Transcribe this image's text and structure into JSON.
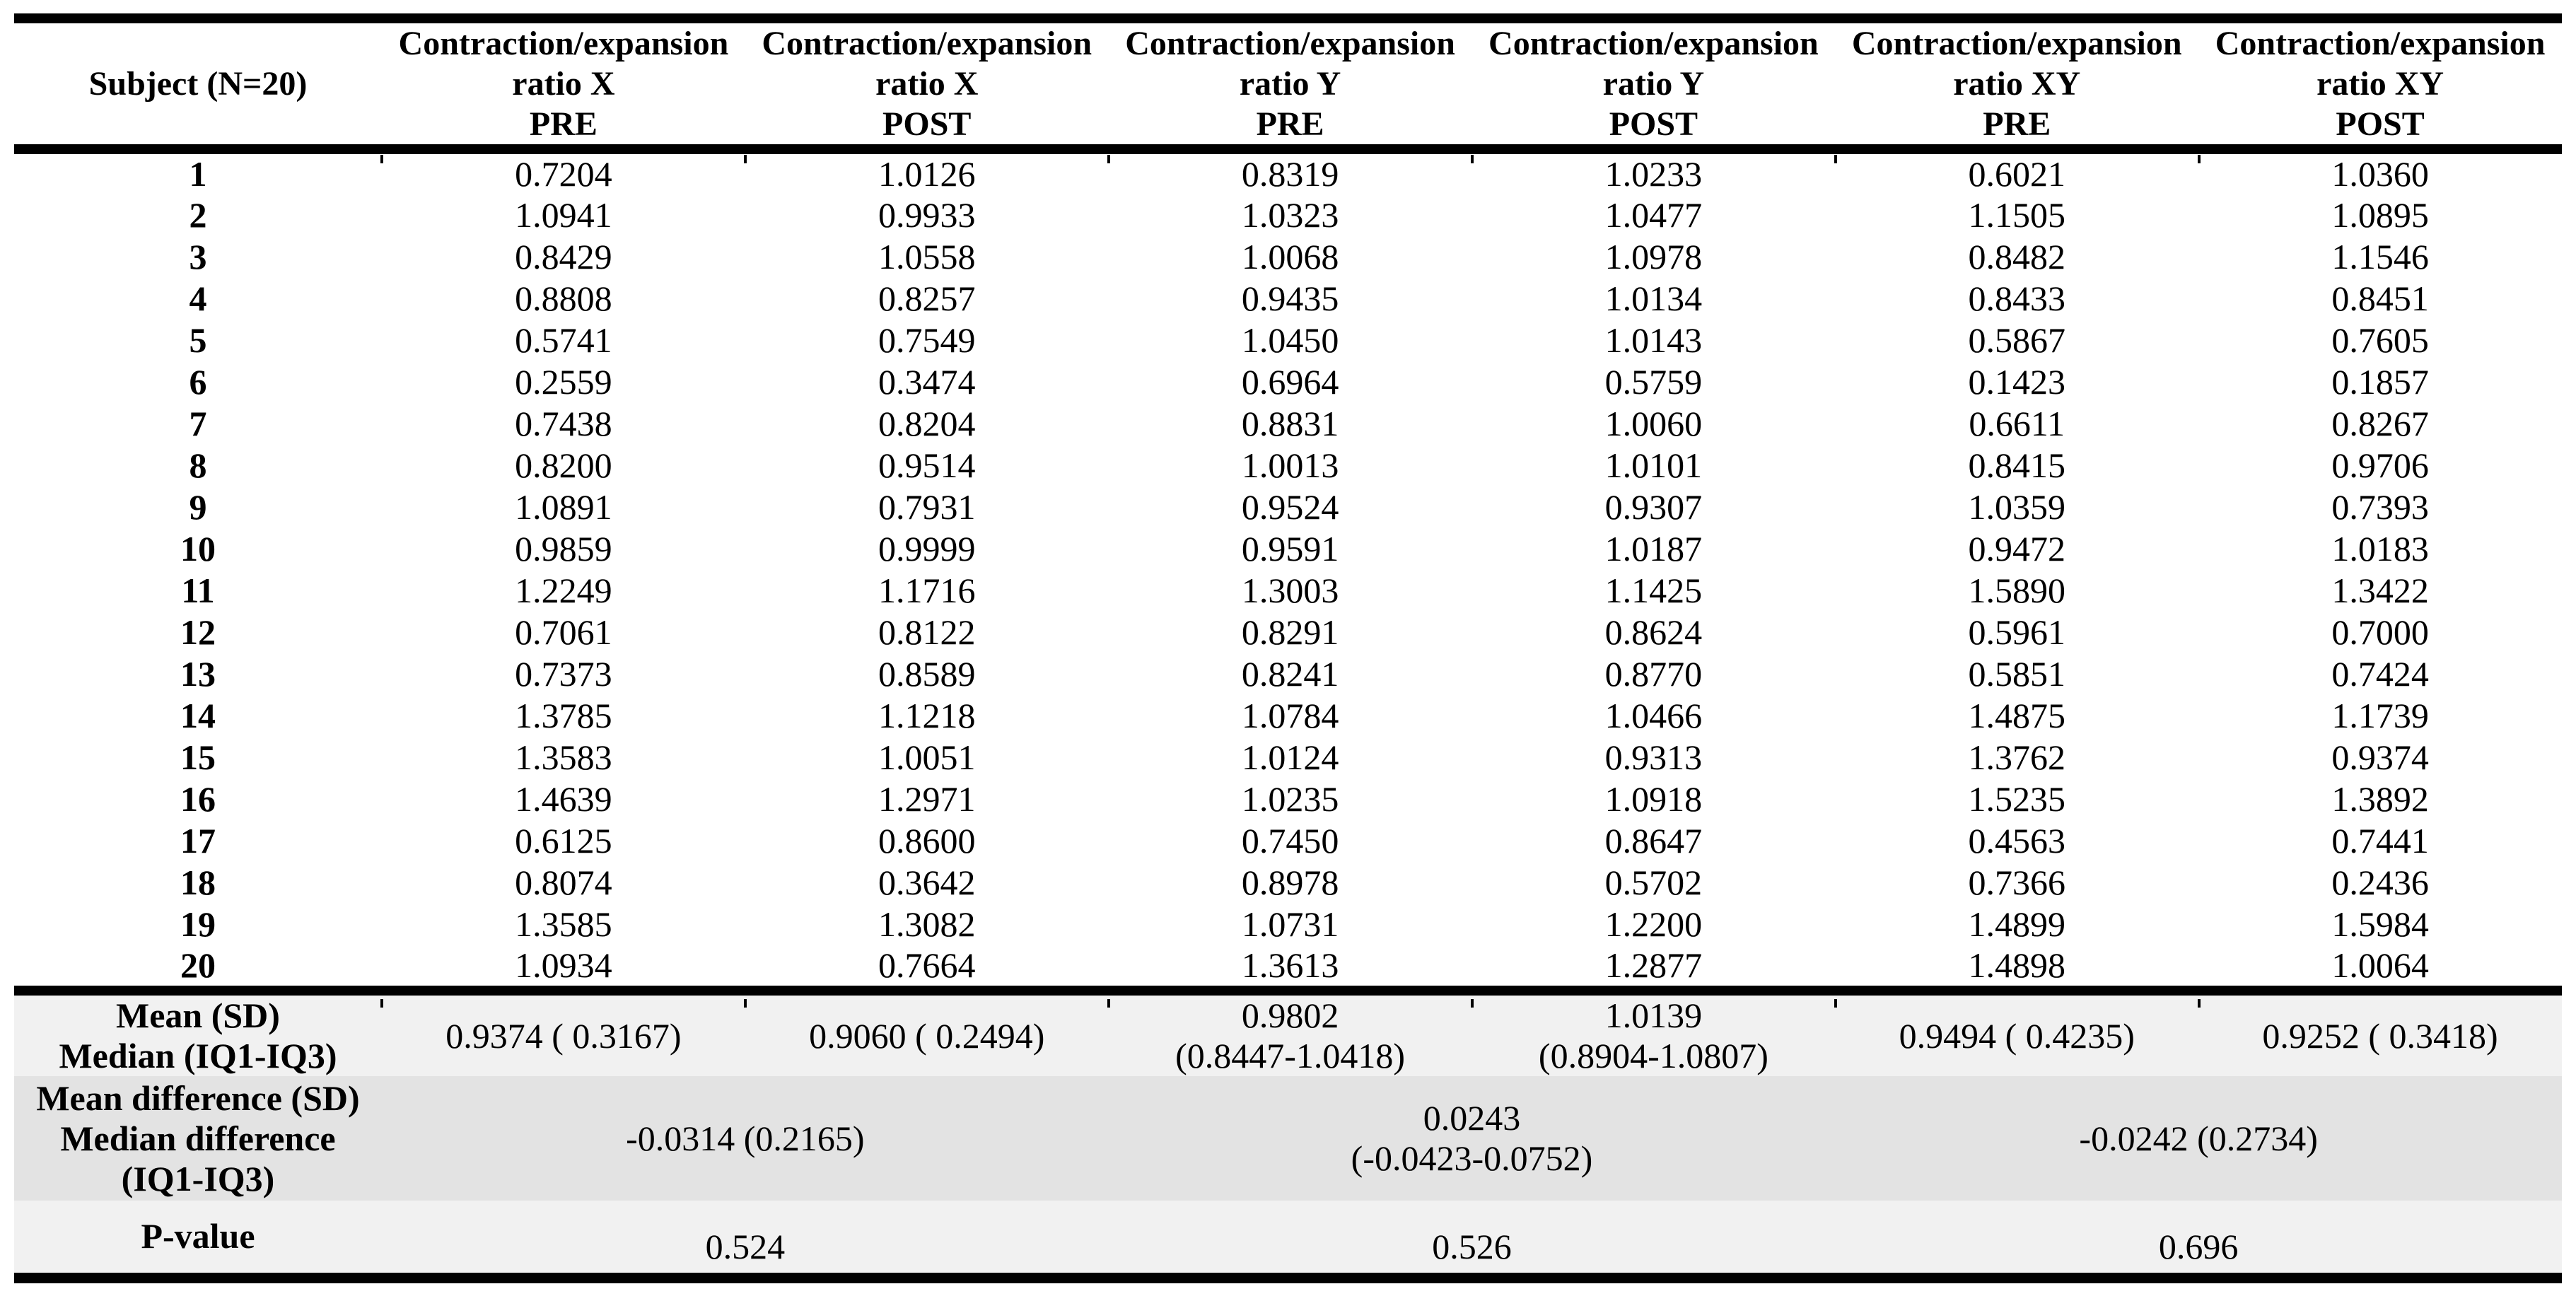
{
  "table": {
    "colors": {
      "band_light": "#f1f1f1",
      "band_dark": "#e3e3e3",
      "rule": "#000000"
    },
    "subject_header": "Subject (N=20)",
    "columns": [
      {
        "line1": "Contraction/expansion",
        "line2": "ratio X",
        "line3": "PRE"
      },
      {
        "line1": "Contraction/expansion",
        "line2": "ratio X",
        "line3": "POST"
      },
      {
        "line1": "Contraction/expansion",
        "line2": "ratio Y",
        "line3": "PRE"
      },
      {
        "line1": "Contraction/expansion",
        "line2": "ratio Y",
        "line3": "POST"
      },
      {
        "line1": "Contraction/expansion",
        "line2": "ratio XY",
        "line3": "PRE"
      },
      {
        "line1": "Contraction/expansion",
        "line2": "ratio XY",
        "line3": "POST"
      }
    ],
    "rows": [
      {
        "subject": "1",
        "values": [
          "0.7204",
          "1.0126",
          "0.8319",
          "1.0233",
          "0.6021",
          "1.0360"
        ]
      },
      {
        "subject": "2",
        "values": [
          "1.0941",
          "0.9933",
          "1.0323",
          "1.0477",
          "1.1505",
          "1.0895"
        ]
      },
      {
        "subject": "3",
        "values": [
          "0.8429",
          "1.0558",
          "1.0068",
          "1.0978",
          "0.8482",
          "1.1546"
        ]
      },
      {
        "subject": "4",
        "values": [
          "0.8808",
          "0.8257",
          "0.9435",
          "1.0134",
          "0.8433",
          "0.8451"
        ]
      },
      {
        "subject": "5",
        "values": [
          "0.5741",
          "0.7549",
          "1.0450",
          "1.0143",
          "0.5867",
          "0.7605"
        ]
      },
      {
        "subject": "6",
        "values": [
          "0.2559",
          "0.3474",
          "0.6964",
          "0.5759",
          "0.1423",
          "0.1857"
        ]
      },
      {
        "subject": "7",
        "values": [
          "0.7438",
          "0.8204",
          "0.8831",
          "1.0060",
          "0.6611",
          "0.8267"
        ]
      },
      {
        "subject": "8",
        "values": [
          "0.8200",
          "0.9514",
          "1.0013",
          "1.0101",
          "0.8415",
          "0.9706"
        ]
      },
      {
        "subject": "9",
        "values": [
          "1.0891",
          "0.7931",
          "0.9524",
          "0.9307",
          "1.0359",
          "0.7393"
        ]
      },
      {
        "subject": "10",
        "values": [
          "0.9859",
          "0.9999",
          "0.9591",
          "1.0187",
          "0.9472",
          "1.0183"
        ]
      },
      {
        "subject": "11",
        "values": [
          "1.2249",
          "1.1716",
          "1.3003",
          "1.1425",
          "1.5890",
          "1.3422"
        ]
      },
      {
        "subject": "12",
        "values": [
          "0.7061",
          "0.8122",
          "0.8291",
          "0.8624",
          "0.5961",
          "0.7000"
        ]
      },
      {
        "subject": "13",
        "values": [
          "0.7373",
          "0.8589",
          "0.8241",
          "0.8770",
          "0.5851",
          "0.7424"
        ]
      },
      {
        "subject": "14",
        "values": [
          "1.3785",
          "1.1218",
          "1.0784",
          "1.0466",
          "1.4875",
          "1.1739"
        ]
      },
      {
        "subject": "15",
        "values": [
          "1.3583",
          "1.0051",
          "1.0124",
          "0.9313",
          "1.3762",
          "0.9374"
        ]
      },
      {
        "subject": "16",
        "values": [
          "1.4639",
          "1.2971",
          "1.0235",
          "1.0918",
          "1.5235",
          "1.3892"
        ]
      },
      {
        "subject": "17",
        "values": [
          "0.6125",
          "0.8600",
          "0.7450",
          "0.8647",
          "0.4563",
          "0.7441"
        ]
      },
      {
        "subject": "18",
        "values": [
          "0.8074",
          "0.3642",
          "0.8978",
          "0.5702",
          "0.7366",
          "0.2436"
        ]
      },
      {
        "subject": "19",
        "values": [
          "1.3585",
          "1.3082",
          "1.0731",
          "1.2200",
          "1.4899",
          "1.5984"
        ]
      },
      {
        "subject": "20",
        "values": [
          "1.0934",
          "0.7664",
          "1.3613",
          "1.2877",
          "1.4898",
          "1.0064"
        ]
      }
    ],
    "summary": {
      "mean": {
        "label_line1": "Mean (SD)",
        "label_line2": "Median (IQ1-IQ3)",
        "cells": [
          {
            "line1": "0.9374 ( 0.3167)",
            "line2": ""
          },
          {
            "line1": "0.9060 ( 0.2494)",
            "line2": ""
          },
          {
            "line1": "0.9802",
            "line2": "(0.8447-1.0418)"
          },
          {
            "line1": "1.0139",
            "line2": "(0.8904-1.0807)"
          },
          {
            "line1": "0.9494 ( 0.4235)",
            "line2": ""
          },
          {
            "line1": "0.9252 ( 0.3418)",
            "line2": ""
          }
        ]
      },
      "mean_difference": {
        "label_line1": "Mean difference (SD)",
        "label_line2": "Median difference",
        "label_line3": "(IQ1-IQ3)",
        "cells": [
          {
            "line1": "-0.0314 (0.2165)",
            "line2": ""
          },
          {
            "line1": "0.0243",
            "line2": "(-0.0423-0.0752)"
          },
          {
            "line1": "-0.0242 (0.2734)",
            "line2": ""
          }
        ]
      },
      "p_value": {
        "label": "P-value",
        "cells": [
          "0.524",
          "0.526",
          "0.696"
        ]
      }
    }
  }
}
